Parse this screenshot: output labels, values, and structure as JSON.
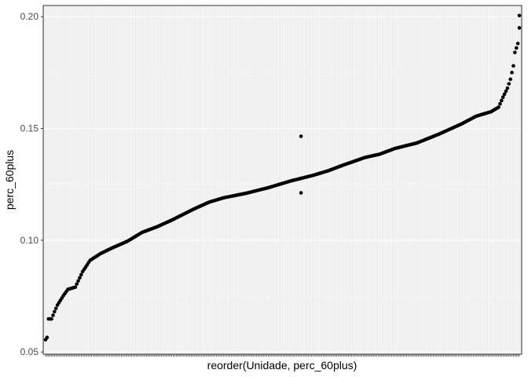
{
  "chart_data": {
    "type": "scatter",
    "xlabel": "reorder(Unidade, perc_60plus)",
    "ylabel": "perc_60plus",
    "x_categories_count": 320,
    "ylim": [
      0.049,
      0.205
    ],
    "y_ticks": [
      0.05,
      0.1,
      0.15,
      0.2
    ],
    "y_tick_labels": [
      "0.05",
      "0.10",
      "0.15",
      "0.20"
    ],
    "grid": true,
    "background": "#EBEBEB",
    "point_color": "#000000",
    "y_knots": [
      [
        0,
        0.0555
      ],
      [
        1,
        0.0565
      ],
      [
        2,
        0.0648
      ],
      [
        4,
        0.0648
      ],
      [
        6,
        0.068
      ],
      [
        8,
        0.071
      ],
      [
        12,
        0.0752
      ],
      [
        15,
        0.078
      ],
      [
        20,
        0.079
      ],
      [
        25,
        0.086
      ],
      [
        30,
        0.091
      ],
      [
        37,
        0.094
      ],
      [
        45,
        0.0966
      ],
      [
        55,
        0.0995
      ],
      [
        65,
        0.1035
      ],
      [
        75,
        0.106
      ],
      [
        85,
        0.109
      ],
      [
        100,
        0.114
      ],
      [
        110,
        0.117
      ],
      [
        120,
        0.119
      ],
      [
        135,
        0.121
      ],
      [
        150,
        0.1235
      ],
      [
        165,
        0.1265
      ],
      [
        180,
        0.129
      ],
      [
        190,
        0.131
      ],
      [
        200,
        0.1335
      ],
      [
        215,
        0.137
      ],
      [
        225,
        0.1385
      ],
      [
        235,
        0.141
      ],
      [
        250,
        0.1435
      ],
      [
        265,
        0.1475
      ],
      [
        280,
        0.152
      ],
      [
        290,
        0.1555
      ],
      [
        300,
        0.1575
      ],
      [
        305,
        0.1595
      ],
      [
        308,
        0.164
      ],
      [
        311,
        0.168
      ],
      [
        313,
        0.172
      ],
      [
        315,
        0.178
      ],
      [
        316,
        0.184
      ],
      [
        317,
        0.186
      ],
      [
        318,
        0.188
      ],
      [
        319,
        0.195
      ]
    ],
    "extra_points": [
      {
        "x": 172,
        "y": 0.1465
      },
      {
        "x": 172,
        "y": 0.1212
      },
      {
        "x": 319,
        "y": 0.2005
      }
    ]
  }
}
